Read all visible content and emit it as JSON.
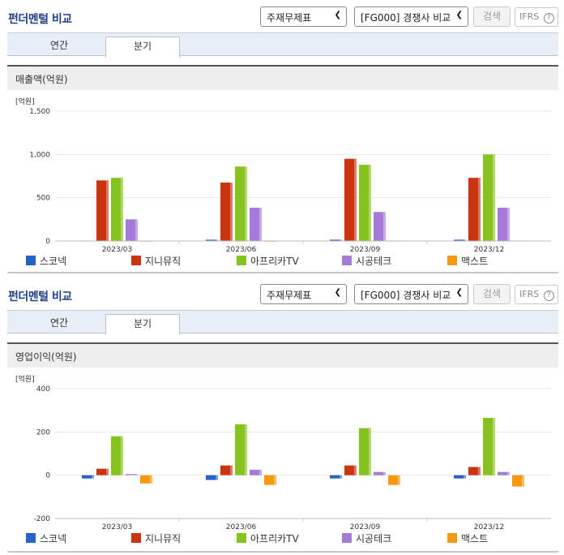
{
  "colors": {
    "series": [
      "#2563c9",
      "#c93511",
      "#86c31e",
      "#a67ad8",
      "#f59a10"
    ],
    "title_blue": "#1f3f86",
    "grid": "#e6e6e6"
  },
  "panels": [
    {
      "toolbar": {
        "title": "펀더멘털 비교",
        "select_type": "주재무제표",
        "select_compare": "[FG000] 경쟁사 비교",
        "search_label": "검색",
        "ifrs_label": "IFRS",
        "help_icon": "?"
      },
      "tabs": {
        "annual": "연간",
        "quarterly": "분기",
        "active": "quarterly"
      },
      "section_title": "매출액(억원)",
      "unit": "[억원]",
      "legend": [
        "스코넥",
        "지니뮤직",
        "아프리카TV",
        "시공테크",
        "맥스트"
      ]
    },
    {
      "toolbar": {
        "title": "펀더멘털 비교",
        "select_type": "주재무제표",
        "select_compare": "[FG000] 경쟁사 비교",
        "search_label": "검색",
        "ifrs_label": "IFRS",
        "help_icon": "?"
      },
      "tabs": {
        "annual": "연간",
        "quarterly": "분기",
        "active": "quarterly"
      },
      "section_title": "영업이익(억원)",
      "unit": "[억원]",
      "legend": [
        "스코넥",
        "지니뮤직",
        "아프리카TV",
        "시공테크",
        "맥스트"
      ]
    }
  ],
  "chart_data": [
    {
      "type": "bar",
      "categories": [
        "2023/03",
        "2023/06",
        "2023/09",
        "2023/12"
      ],
      "ylim": [
        0,
        1500
      ],
      "yticks": [
        0,
        500,
        1000,
        1500
      ],
      "ytick_labels": [
        "0",
        "500",
        "1,000",
        "1,500"
      ],
      "series": [
        {
          "name": "스코넥",
          "values": [
            5,
            15,
            15,
            15
          ]
        },
        {
          "name": "지니뮤직",
          "values": [
            700,
            675,
            950,
            730
          ]
        },
        {
          "name": "아프리카TV",
          "values": [
            730,
            860,
            880,
            1000
          ]
        },
        {
          "name": "시공테크",
          "values": [
            250,
            385,
            335,
            385
          ]
        },
        {
          "name": "맥스트",
          "values": [
            3,
            2,
            4,
            5
          ]
        }
      ]
    },
    {
      "type": "bar",
      "categories": [
        "2023/03",
        "2023/06",
        "2023/09",
        "2023/12"
      ],
      "ylim": [
        -200,
        400
      ],
      "yticks": [
        -200,
        0,
        200,
        400
      ],
      "ytick_labels": [
        "-200",
        "0",
        "200",
        "400"
      ],
      "series": [
        {
          "name": "스코넥",
          "values": [
            -15,
            -22,
            -15,
            -15
          ]
        },
        {
          "name": "지니뮤직",
          "values": [
            30,
            45,
            45,
            38
          ]
        },
        {
          "name": "아프리카TV",
          "values": [
            180,
            235,
            218,
            265
          ]
        },
        {
          "name": "시공테크",
          "values": [
            5,
            25,
            15,
            15
          ]
        },
        {
          "name": "맥스트",
          "values": [
            -38,
            -45,
            -45,
            -52
          ]
        }
      ]
    }
  ]
}
